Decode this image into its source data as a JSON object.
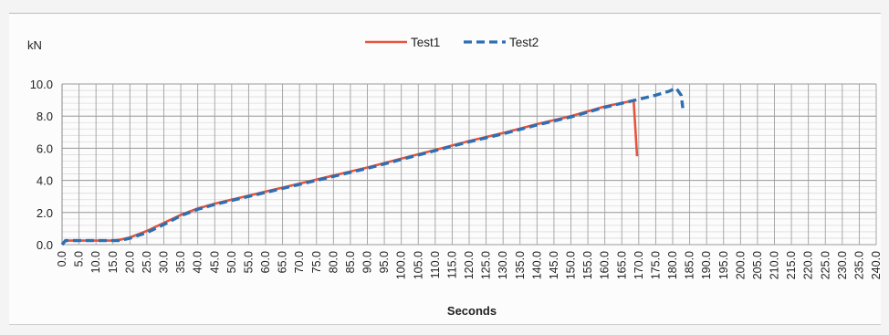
{
  "chart_data": {
    "type": "line",
    "y_unit_label": "kN",
    "xlabel": "Seconds",
    "ylabel": "",
    "xlim": [
      0,
      240
    ],
    "ylim": [
      0,
      10
    ],
    "x_tick_step": 5,
    "x_tick_decimals": 1,
    "y_ticks": [
      "0.0",
      "2.0",
      "4.0",
      "6.0",
      "8.0",
      "10.0"
    ],
    "grid": true,
    "legend_position": "top-center",
    "series": [
      {
        "name": "Test1",
        "color": "#e8533b",
        "dash": "solid",
        "x": [
          0,
          1,
          5,
          10,
          15,
          17,
          20,
          25,
          30,
          35,
          40,
          45,
          50,
          60,
          70,
          80,
          90,
          100,
          110,
          120,
          130,
          140,
          150,
          160,
          168,
          168.5,
          169.5
        ],
        "y": [
          0.0,
          0.25,
          0.25,
          0.25,
          0.25,
          0.3,
          0.45,
          0.85,
          1.35,
          1.85,
          2.25,
          2.55,
          2.8,
          3.3,
          3.8,
          4.3,
          4.8,
          5.35,
          5.9,
          6.45,
          6.95,
          7.5,
          8.0,
          8.6,
          8.95,
          8.9,
          5.5
        ]
      },
      {
        "name": "Test2",
        "color": "#2c6fb2",
        "dash": "dashed",
        "x": [
          0,
          1,
          5,
          10,
          15,
          17,
          20,
          25,
          30,
          35,
          40,
          45,
          50,
          60,
          70,
          80,
          90,
          100,
          110,
          120,
          130,
          140,
          150,
          160,
          168,
          175,
          179,
          181,
          182.5,
          183
        ],
        "y": [
          0.0,
          0.25,
          0.25,
          0.25,
          0.25,
          0.25,
          0.4,
          0.75,
          1.25,
          1.8,
          2.2,
          2.5,
          2.75,
          3.25,
          3.75,
          4.25,
          4.75,
          5.3,
          5.85,
          6.4,
          6.9,
          7.45,
          7.95,
          8.55,
          8.95,
          9.3,
          9.55,
          9.75,
          9.3,
          8.5
        ]
      }
    ]
  }
}
